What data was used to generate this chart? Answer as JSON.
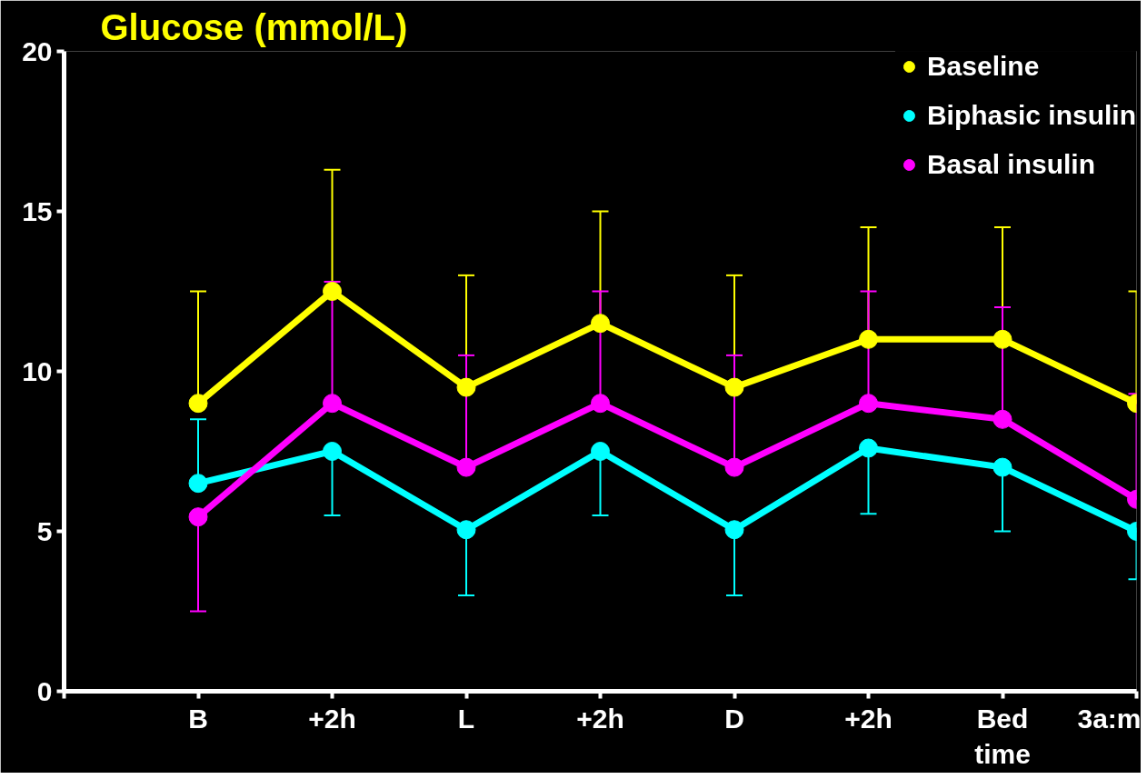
{
  "chart_data": {
    "type": "line",
    "title": "Glucose (mmol/L)",
    "categories": [
      "B",
      "+2h",
      "L",
      "+2h",
      "D",
      "+2h",
      "Bed\ntime",
      "3a:m"
    ],
    "ylim": [
      0,
      20
    ],
    "yticks": [
      0,
      5,
      10,
      15,
      20
    ],
    "grid": false,
    "legend": "top right",
    "marker": "circle",
    "line_style": "solid",
    "series": [
      {
        "name": "Baseline",
        "color": "#ffff00",
        "values": [
          9,
          12.5,
          9.5,
          11.5,
          9.5,
          11,
          11,
          9
        ],
        "errors": [
          [
            9,
            12.5
          ],
          [
            12.5,
            16.3
          ],
          [
            9.5,
            13
          ],
          [
            11.5,
            15
          ],
          [
            9.5,
            13
          ],
          [
            11,
            14.5
          ],
          [
            11,
            14.5
          ],
          [
            9,
            12.5
          ]
        ]
      },
      {
        "name": "Biphasic insulin",
        "color": "#00ffff",
        "values": [
          6.5,
          7.5,
          5.05,
          7.5,
          5.05,
          7.6,
          7,
          5
        ],
        "errors": [
          [
            6.5,
            8.5
          ],
          [
            5.5,
            7.5
          ],
          [
            3,
            5.05
          ],
          [
            5.5,
            7.5
          ],
          [
            3,
            5.05
          ],
          [
            5.55,
            7.6
          ],
          [
            5,
            7
          ],
          [
            3.5,
            5
          ]
        ]
      },
      {
        "name": "Basal insulin",
        "color": "#ff00ff",
        "values": [
          5.45,
          9,
          7,
          9,
          7,
          9,
          8.5,
          6
        ],
        "errors": [
          [
            2.5,
            5.45
          ],
          [
            9,
            12.8
          ],
          [
            7,
            10.5
          ],
          [
            9,
            12.5
          ],
          [
            7,
            10.5
          ],
          [
            9,
            12.5
          ],
          [
            8.5,
            12
          ],
          [
            6,
            9.3
          ]
        ]
      }
    ]
  }
}
